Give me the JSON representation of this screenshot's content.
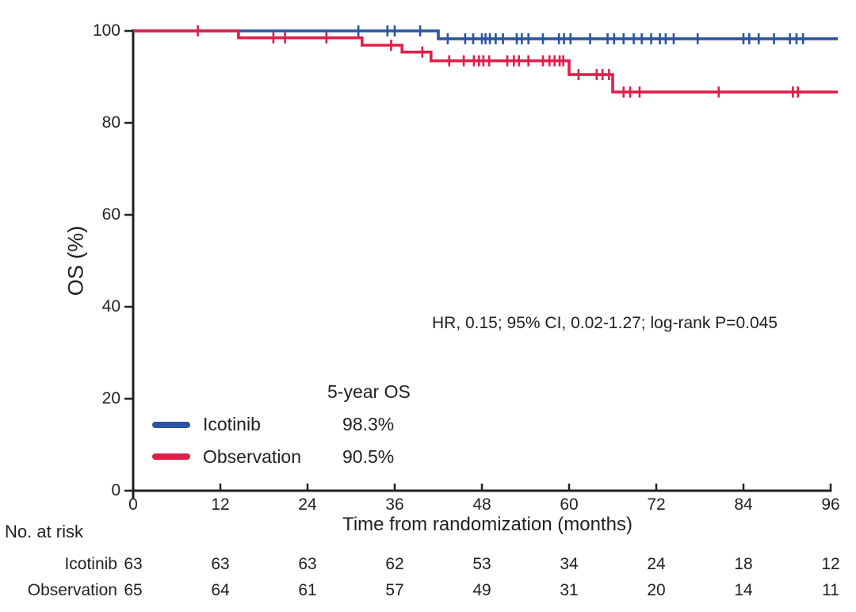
{
  "figure": {
    "annotation": "HR, 0.15; 95% CI, 0.02-1.27; log-rank P=0.045",
    "axis_color": "#231f20",
    "background": "#ffffff"
  },
  "legend": {
    "header": "5-year OS",
    "items": [
      {
        "name": "Icotinib",
        "value": "98.3%",
        "color": "#2b54a3"
      },
      {
        "name": "Observation",
        "value": "90.5%",
        "color": "#e01e49"
      }
    ]
  },
  "at_risk": {
    "title": "No. at risk",
    "times": [
      0,
      12,
      24,
      36,
      48,
      60,
      72,
      84,
      96
    ],
    "rows": [
      {
        "label": "Icotinib",
        "counts": [
          63,
          63,
          63,
          62,
          53,
          34,
          24,
          18,
          12
        ]
      },
      {
        "label": "Observation",
        "counts": [
          65,
          64,
          61,
          57,
          49,
          31,
          20,
          14,
          11
        ]
      }
    ]
  },
  "chart_data": {
    "type": "line",
    "subtype": "kaplan-meier-step",
    "title": "",
    "xlabel": "Time from randomization (months)",
    "ylabel": "OS (%)",
    "xlim": [
      0,
      96
    ],
    "ylim": [
      0,
      100
    ],
    "xticks": [
      0,
      12,
      24,
      36,
      48,
      60,
      72,
      84,
      96
    ],
    "yticks": [
      0,
      20,
      40,
      60,
      80,
      100
    ],
    "grid": false,
    "legend_position": "lower-left-inside",
    "series": [
      {
        "name": "Icotinib",
        "color": "#2b54a3",
        "five_year_os_pct": 98.3,
        "steps": [
          [
            0,
            100
          ],
          [
            42,
            100
          ],
          [
            42,
            98.3
          ],
          [
            97,
            98.3
          ]
        ],
        "censor_times": [
          31,
          35,
          36,
          39.5,
          43.3,
          45.7,
          46.8,
          48,
          48.5,
          49.1,
          49.9,
          50.9,
          52.8,
          53.5,
          54.4,
          56.4,
          58.6,
          59.3,
          60.2,
          62.9,
          65.3,
          66.2,
          67.5,
          68.9,
          70,
          71.3,
          72.5,
          73.3,
          74.4,
          77.7,
          84,
          84.8,
          86.1,
          88.2,
          90.4,
          91.3,
          92.2
        ]
      },
      {
        "name": "Observation",
        "color": "#e01e49",
        "five_year_os_pct": 90.5,
        "steps": [
          [
            0,
            100
          ],
          [
            14.5,
            100
          ],
          [
            14.5,
            98.5
          ],
          [
            31.5,
            98.5
          ],
          [
            31.5,
            96.9
          ],
          [
            37,
            96.9
          ],
          [
            37,
            95.4
          ],
          [
            41,
            95.4
          ],
          [
            41,
            93.5
          ],
          [
            60,
            93.5
          ],
          [
            60,
            90.5
          ],
          [
            66,
            90.5
          ],
          [
            66,
            86.7
          ],
          [
            97,
            86.7
          ]
        ],
        "censor_times": [
          8.9,
          19.3,
          20.9,
          26.6,
          35.5,
          39.8,
          43.5,
          45.5,
          46.9,
          47.6,
          48.2,
          49,
          51.5,
          52.4,
          53.1,
          54.4,
          56.4,
          57.3,
          58,
          58.7,
          59.2,
          61.3,
          63.8,
          64.6,
          65.5,
          67.5,
          68.4,
          69.7,
          80.6,
          90.8,
          91.5
        ]
      }
    ]
  }
}
